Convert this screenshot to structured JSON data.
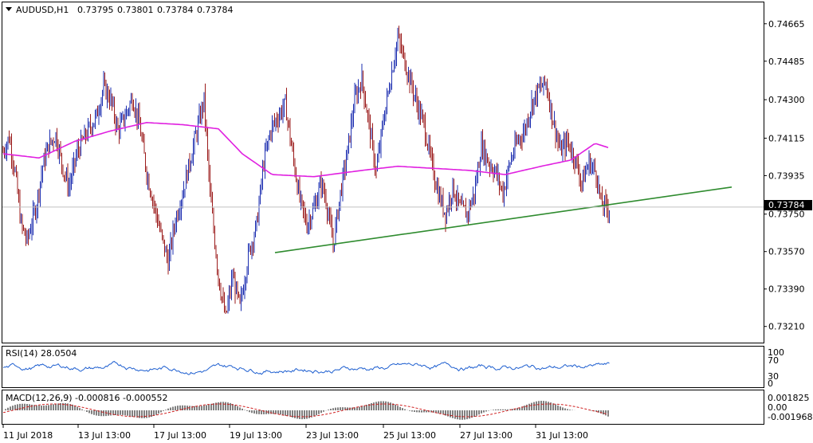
{
  "header": {
    "symbol": "AUDUSD,H1",
    "open": "0.73795",
    "high": "0.73801",
    "low": "0.73784",
    "close": "0.73784"
  },
  "price_axis": {
    "labels": [
      "0.74665",
      "0.74485",
      "0.74300",
      "0.74115",
      "0.73935",
      "0.73750",
      "0.73570",
      "0.73390",
      "0.73210"
    ],
    "current_label": "0.73784"
  },
  "time_axis": {
    "labels": [
      "11 Jul 2018",
      "13 Jul 13:00",
      "17 Jul 13:00",
      "19 Jul 13:00",
      "23 Jul 13:00",
      "25 Jul 13:00",
      "27 Jul 13:00",
      "31 Jul 13:00"
    ]
  },
  "rsi": {
    "title": "RSI(14) 28.0504",
    "levels": [
      "100",
      "70",
      "30",
      "0"
    ]
  },
  "macd": {
    "title": "MACD(12,26,9) -0.000816 -0.000552",
    "levels": [
      "0.001825",
      "0.00",
      "-0.001968"
    ]
  },
  "colors": {
    "bull": "#1e2fb0",
    "bear": "#9b1b1b",
    "ma": "#e020e0",
    "trendline": "#2e8b2e",
    "rsi": "#1e5fd0",
    "macd_signal": "#d02020"
  },
  "chart_data": {
    "type": "line",
    "y_range": [
      0.7314,
      0.7476
    ],
    "current_price": 0.73784,
    "close_keyframes": [
      [
        0,
        0.7405
      ],
      [
        5,
        0.7412
      ],
      [
        10,
        0.7395
      ],
      [
        15,
        0.737
      ],
      [
        20,
        0.7362
      ],
      [
        28,
        0.738
      ],
      [
        33,
        0.7398
      ],
      [
        38,
        0.7408
      ],
      [
        44,
        0.7413
      ],
      [
        50,
        0.7397
      ],
      [
        55,
        0.7388
      ],
      [
        62,
        0.7405
      ],
      [
        70,
        0.7414
      ],
      [
        78,
        0.7422
      ],
      [
        84,
        0.7436
      ],
      [
        90,
        0.743
      ],
      [
        96,
        0.7415
      ],
      [
        102,
        0.7422
      ],
      [
        108,
        0.7431
      ],
      [
        114,
        0.7418
      ],
      [
        120,
        0.7395
      ],
      [
        126,
        0.738
      ],
      [
        132,
        0.7365
      ],
      [
        138,
        0.7352
      ],
      [
        144,
        0.7372
      ],
      [
        150,
        0.7385
      ],
      [
        156,
        0.74
      ],
      [
        162,
        0.7415
      ],
      [
        168,
        0.743
      ],
      [
        173,
        0.7385
      ],
      [
        180,
        0.7345
      ],
      [
        186,
        0.7325
      ],
      [
        192,
        0.7345
      ],
      [
        198,
        0.733
      ],
      [
        205,
        0.7355
      ],
      [
        212,
        0.737
      ],
      [
        218,
        0.74
      ],
      [
        224,
        0.7416
      ],
      [
        230,
        0.7422
      ],
      [
        236,
        0.7428
      ],
      [
        242,
        0.7404
      ],
      [
        248,
        0.7382
      ],
      [
        254,
        0.737
      ],
      [
        260,
        0.7378
      ],
      [
        266,
        0.739
      ],
      [
        270,
        0.7382
      ],
      [
        276,
        0.736
      ],
      [
        282,
        0.7385
      ],
      [
        288,
        0.7405
      ],
      [
        294,
        0.743
      ],
      [
        300,
        0.744
      ],
      [
        306,
        0.7418
      ],
      [
        312,
        0.7395
      ],
      [
        318,
        0.742
      ],
      [
        324,
        0.744
      ],
      [
        330,
        0.746
      ],
      [
        334,
        0.7452
      ],
      [
        340,
        0.744
      ],
      [
        346,
        0.7428
      ],
      [
        352,
        0.7418
      ],
      [
        358,
        0.74
      ],
      [
        364,
        0.7385
      ],
      [
        370,
        0.7375
      ],
      [
        376,
        0.7388
      ],
      [
        382,
        0.7378
      ],
      [
        388,
        0.7375
      ],
      [
        394,
        0.7385
      ],
      [
        400,
        0.7408
      ],
      [
        406,
        0.74
      ],
      [
        412,
        0.7395
      ],
      [
        418,
        0.7385
      ],
      [
        424,
        0.74
      ],
      [
        430,
        0.741
      ],
      [
        436,
        0.7415
      ],
      [
        442,
        0.7428
      ],
      [
        448,
        0.7435
      ],
      [
        454,
        0.7438
      ],
      [
        460,
        0.742
      ],
      [
        466,
        0.7405
      ],
      [
        472,
        0.741
      ],
      [
        478,
        0.7402
      ],
      [
        484,
        0.739
      ],
      [
        490,
        0.74
      ],
      [
        496,
        0.7395
      ],
      [
        500,
        0.738
      ],
      [
        506,
        0.7378
      ]
    ],
    "ma_keyframes": [
      [
        0,
        0.7404
      ],
      [
        30,
        0.7402
      ],
      [
        60,
        0.741
      ],
      [
        90,
        0.7415
      ],
      [
        120,
        0.7419
      ],
      [
        150,
        0.7418
      ],
      [
        180,
        0.7416
      ],
      [
        200,
        0.7404
      ],
      [
        225,
        0.7394
      ],
      [
        260,
        0.7393
      ],
      [
        300,
        0.7396
      ],
      [
        330,
        0.7398
      ],
      [
        360,
        0.7397
      ],
      [
        390,
        0.7396
      ],
      [
        420,
        0.7394
      ],
      [
        450,
        0.7398
      ],
      [
        475,
        0.7401
      ],
      [
        495,
        0.7409
      ],
      [
        506,
        0.7407
      ]
    ],
    "trendline": [
      [
        0.73565,
        0.73565
      ],
      [
        0.7388,
        0.7388
      ]
    ]
  }
}
